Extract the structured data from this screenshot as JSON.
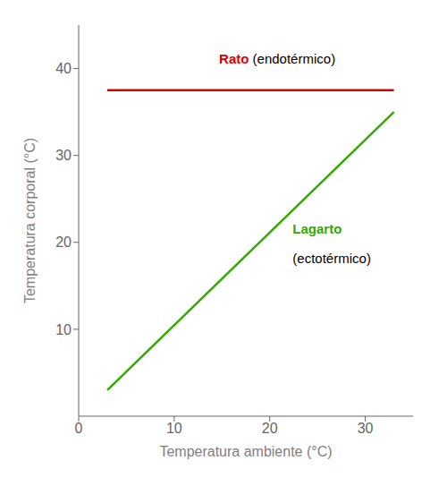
{
  "chart_data": {
    "type": "line",
    "xlabel": "Temperatura ambiente (°C)",
    "ylabel": "Temperatura corporal (°C)",
    "x": [
      3,
      33
    ],
    "series": [
      {
        "name": "Rato",
        "color": "#dd0000",
        "values": [
          37.5,
          37.5
        ]
      },
      {
        "name": "Lagarto",
        "color": "#33aa00",
        "values": [
          3,
          35
        ]
      }
    ],
    "xlim": [
      0,
      35
    ],
    "ylim": [
      0,
      45
    ],
    "xticks": [
      0,
      10,
      20,
      30
    ],
    "yticks": [
      10,
      20,
      30,
      40
    ],
    "annotations": [
      {
        "text": "Rato",
        "color": "#dd0000"
      },
      {
        "text": " (endotérmico)"
      },
      {
        "text": "Lagarto",
        "color": "#33aa00"
      },
      {
        "text": "(ectotérmico)"
      }
    ]
  }
}
